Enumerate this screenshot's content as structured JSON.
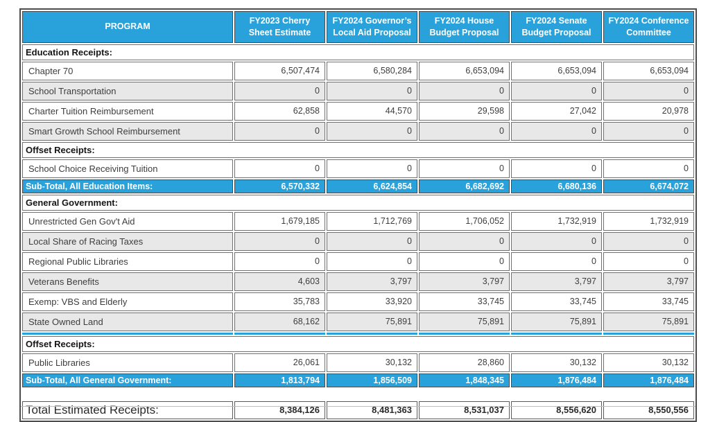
{
  "colors": {
    "accent_blue": "#29a2db",
    "alt_row_gray": "#e8e8e8",
    "header_text": "#ffffff"
  },
  "columns": [
    "PROGRAM",
    "FY2023 Cherry Sheet Estimate",
    "FY2024 Governor’s Local Aid Proposal",
    "FY2024 House Budget Proposal",
    "FY2024 Senate Budget Proposal",
    "FY2024 Conference Committee"
  ],
  "education": {
    "section_label": "Education Receipts:",
    "rows": [
      {
        "label": "Chapter 70",
        "values": [
          "6,507,474",
          "6,580,284",
          "6,653,094",
          "6,653,094",
          "6,653,094"
        ]
      },
      {
        "label": "School Transportation",
        "values": [
          "0",
          "0",
          "0",
          "0",
          "0"
        ]
      },
      {
        "label": "Charter Tuition Reimbursement",
        "values": [
          "62,858",
          "44,570",
          "29,598",
          "27,042",
          "20,978"
        ]
      },
      {
        "label": "Smart Growth School Reimbursement",
        "values": [
          "0",
          "0",
          "0",
          "0",
          "0"
        ]
      }
    ],
    "offset_section_label": "Offset Receipts:",
    "offset_rows": [
      {
        "label": "School Choice Receiving Tuition",
        "values": [
          "0",
          "0",
          "0",
          "0",
          "0"
        ]
      }
    ],
    "subtotal": {
      "label": "Sub-Total, All Education Items:",
      "values": [
        "6,570,332",
        "6,624,854",
        "6,682,692",
        "6,680,136",
        "6,674,072"
      ]
    }
  },
  "general": {
    "section_label": "General Government:",
    "rows": [
      {
        "label": "Unrestricted Gen Gov't Aid",
        "values": [
          "1,679,185",
          "1,712,769",
          "1,706,052",
          "1,732,919",
          "1,732,919"
        ]
      },
      {
        "label": "Local Share of Racing Taxes",
        "values": [
          "0",
          "0",
          "0",
          "0",
          "0"
        ]
      },
      {
        "label": "Regional Public Libraries",
        "values": [
          "0",
          "0",
          "0",
          "0",
          "0"
        ]
      },
      {
        "label": "Veterans Benefits",
        "values": [
          "4,603",
          "3,797",
          "3,797",
          "3,797",
          "3,797"
        ]
      },
      {
        "label": "Exemp: VBS and Elderly",
        "values": [
          "35,783",
          "33,920",
          "33,745",
          "33,745",
          "33,745"
        ]
      },
      {
        "label": "State Owned Land",
        "values": [
          "68,162",
          "75,891",
          "75,891",
          "75,891",
          "75,891"
        ]
      }
    ],
    "offset_section_label": "Offset Receipts:",
    "offset_rows": [
      {
        "label": "Public Libraries",
        "values": [
          "26,061",
          "30,132",
          "28,860",
          "30,132",
          "30,132"
        ]
      }
    ],
    "subtotal": {
      "label": "Sub-Total, All General Government:",
      "values": [
        "1,813,794",
        "1,856,509",
        "1,848,345",
        "1,876,484",
        "1,876,484"
      ]
    }
  },
  "total": {
    "label": "Total Estimated Receipts:",
    "values": [
      "8,384,126",
      "8,481,363",
      "8,531,037",
      "8,556,620",
      "8,550,556"
    ]
  }
}
